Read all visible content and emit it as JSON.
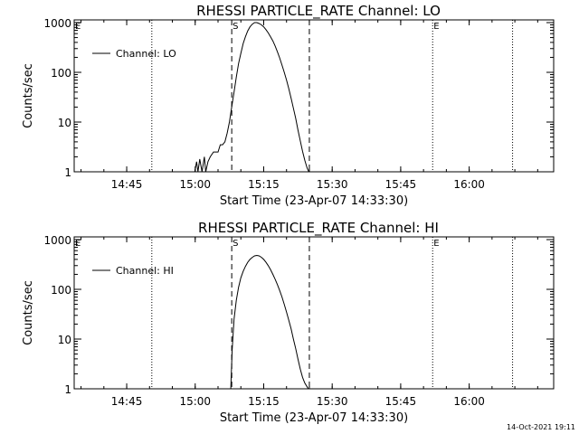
{
  "footer": {
    "timestamp": "14-Oct-2021 19:11"
  },
  "chart_data": [
    {
      "type": "line",
      "title": "RHESSI PARTICLE_RATE Channel: LO",
      "xlabel": "Start Time (23-Apr-07 14:33:30)",
      "ylabel": "Counts/sec",
      "x_unit": "minutes after 14:33:30",
      "xlim": [
        0,
        105
      ],
      "ylim": [
        1,
        1000
      ],
      "y_scale": "log",
      "grid": false,
      "legend": {
        "position": "top-left",
        "entries": [
          "Channel: LO"
        ]
      },
      "xticks": [
        {
          "x": 11.5,
          "label": "14:45"
        },
        {
          "x": 26.5,
          "label": "15:00"
        },
        {
          "x": 41.5,
          "label": "15:15"
        },
        {
          "x": 56.5,
          "label": "15:30"
        },
        {
          "x": 71.5,
          "label": "15:45"
        },
        {
          "x": 86.5,
          "label": "16:00"
        }
      ],
      "yticks": [
        {
          "y": 1,
          "label": "1"
        },
        {
          "y": 10,
          "label": "10"
        },
        {
          "y": 100,
          "label": "100"
        },
        {
          "y": 1000,
          "label": "1000"
        }
      ],
      "markers": [
        {
          "x": 0,
          "label": "E",
          "style": "dotted"
        },
        {
          "x": 17,
          "label": "",
          "style": "dotted"
        },
        {
          "x": 34.5,
          "label": "S",
          "style": "dashed"
        },
        {
          "x": 51.5,
          "label": "",
          "style": "dashed"
        },
        {
          "x": 78.5,
          "label": "E",
          "style": "dotted"
        },
        {
          "x": 96,
          "label": "",
          "style": "dotted"
        }
      ],
      "series": [
        {
          "name": "Channel: LO",
          "x": [
            26.4,
            26.8,
            27.1,
            27.5,
            28.0,
            28.5,
            28.8,
            29.3,
            29.8,
            30.5,
            31.0,
            31.5,
            32.0,
            32.5,
            33.0,
            33.5,
            34.0,
            34.5,
            35.0,
            35.5,
            36.0,
            36.5,
            37.0,
            37.5,
            38.0,
            38.5,
            39.0,
            39.5,
            40.0,
            40.5,
            41.0,
            41.5,
            42.0,
            42.5,
            43.0,
            43.5,
            44.0,
            44.5,
            45.0,
            45.5,
            46.0,
            46.5,
            47.0,
            47.5,
            48.0,
            48.5,
            49.0,
            49.5,
            50.0,
            50.5,
            51.0,
            51.4
          ],
          "y": [
            1,
            1.6,
            1,
            1.8,
            1,
            2,
            1,
            1.6,
            2,
            2.5,
            2.5,
            2.5,
            3.5,
            3.5,
            4,
            6,
            10,
            20,
            40,
            80,
            150,
            240,
            380,
            520,
            680,
            820,
            930,
            1000,
            1000,
            960,
            900,
            820,
            720,
            620,
            520,
            430,
            340,
            260,
            195,
            140,
            100,
            70,
            47,
            30,
            19,
            12,
            7,
            4.2,
            2.6,
            1.7,
            1.2,
            1
          ]
        }
      ]
    },
    {
      "type": "line",
      "title": "RHESSI PARTICLE_RATE Channel: HI",
      "xlabel": "Start Time (23-Apr-07 14:33:30)",
      "ylabel": "Counts/sec",
      "x_unit": "minutes after 14:33:30",
      "xlim": [
        0,
        105
      ],
      "ylim": [
        1,
        1000
      ],
      "y_scale": "log",
      "grid": false,
      "legend": {
        "position": "top-left",
        "entries": [
          "Channel: HI"
        ]
      },
      "xticks": [
        {
          "x": 11.5,
          "label": "14:45"
        },
        {
          "x": 26.5,
          "label": "15:00"
        },
        {
          "x": 41.5,
          "label": "15:15"
        },
        {
          "x": 56.5,
          "label": "15:30"
        },
        {
          "x": 71.5,
          "label": "15:45"
        },
        {
          "x": 86.5,
          "label": "16:00"
        }
      ],
      "yticks": [
        {
          "y": 1,
          "label": "1"
        },
        {
          "y": 10,
          "label": "10"
        },
        {
          "y": 100,
          "label": "100"
        },
        {
          "y": 1000,
          "label": "1000"
        }
      ],
      "markers": [
        {
          "x": 0,
          "label": "E",
          "style": "dotted"
        },
        {
          "x": 17,
          "label": "",
          "style": "dotted"
        },
        {
          "x": 34.5,
          "label": "S",
          "style": "dashed"
        },
        {
          "x": 51.5,
          "label": "",
          "style": "dashed"
        },
        {
          "x": 78.5,
          "label": "E",
          "style": "dotted"
        },
        {
          "x": 96,
          "label": "",
          "style": "dotted"
        }
      ],
      "series": [
        {
          "name": "Channel: HI",
          "x": [
            34.3,
            34.6,
            35.0,
            35.5,
            36.0,
            36.5,
            37.0,
            37.5,
            38.0,
            38.5,
            39.0,
            39.5,
            40.0,
            40.5,
            41.0,
            41.5,
            42.0,
            42.5,
            43.0,
            43.5,
            44.0,
            44.5,
            45.0,
            45.5,
            46.0,
            46.5,
            47.0,
            47.5,
            48.0,
            48.5,
            49.0,
            49.5,
            50.0,
            50.5,
            51.0,
            51.3
          ],
          "y": [
            1,
            6,
            25,
            60,
            110,
            170,
            230,
            290,
            350,
            400,
            440,
            470,
            480,
            470,
            440,
            400,
            350,
            300,
            250,
            200,
            160,
            125,
            95,
            70,
            50,
            35,
            24,
            16,
            10,
            6.5,
            4,
            2.5,
            1.7,
            1.3,
            1.1,
            1
          ]
        }
      ]
    }
  ]
}
